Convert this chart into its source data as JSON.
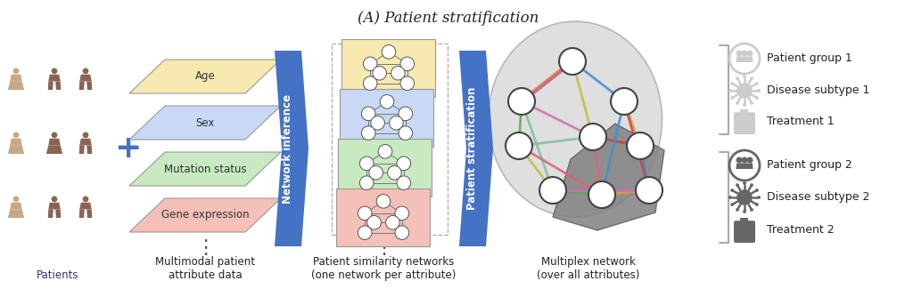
{
  "title": "(A) Patient stratification",
  "title_fontsize": 12,
  "bg_color": "#ffffff",
  "section_labels": [
    "Patients",
    "Multimodal patient\nattribute data",
    "Patient similarity networks\n(one network per attribute)",
    "Multiplex network\n(over all attributes)"
  ],
  "attribute_labels": [
    "Age",
    "Sex",
    "Mutation status",
    "Gene expression"
  ],
  "attribute_colors": [
    "#f7e9b0",
    "#c8d8f5",
    "#c8eac0",
    "#f5c0b8"
  ],
  "legend_labels": [
    "Patient group 1",
    "Disease subtype 1",
    "Treatment 1",
    "Patient group 2",
    "Disease subtype 2",
    "Treatment 2"
  ],
  "banner_color": "#4472c4",
  "person_dark": "#8B6350",
  "person_light": "#C8A882",
  "multiplex_edge_colors": [
    "#e06080",
    "#4090d0",
    "#50b050",
    "#e0a030",
    "#d070b0",
    "#80c0a0",
    "#d04040",
    "#c0c040"
  ],
  "node_fill": "#ffffff",
  "node_edge": "#444444",
  "light_gray": "#cccccc",
  "dark_gray": "#666666",
  "section_label_color": "#222222",
  "patients_label_color": "#333366"
}
